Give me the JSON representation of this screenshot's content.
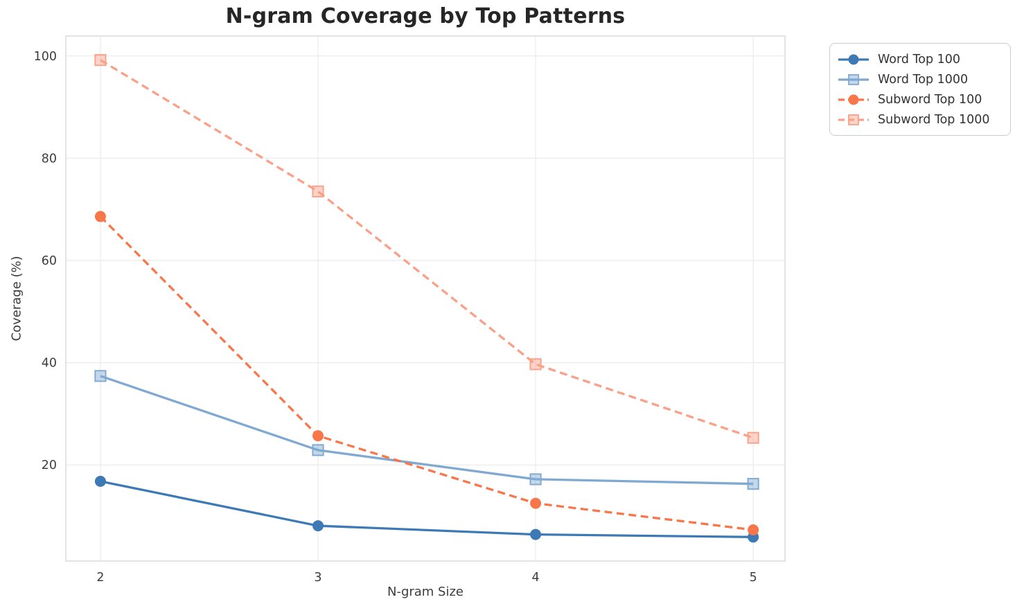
{
  "chart_data": {
    "type": "line",
    "title": "N-gram Coverage by Top Patterns",
    "xlabel": "N-gram Size",
    "ylabel": "Coverage (%)",
    "x": [
      2,
      3,
      4,
      5
    ],
    "x_tick_labels": [
      "2",
      "3",
      "4",
      "5"
    ],
    "y_ticks": [
      20,
      40,
      60,
      80,
      100
    ],
    "xlim": [
      1.841,
      5.146
    ],
    "ylim": [
      1.2,
      103.9
    ],
    "grid": true,
    "legend_position": "outside-upper-right",
    "series": [
      {
        "name": "Word Top 100",
        "values": [
          16.8,
          8.1,
          6.4,
          5.9
        ],
        "color": "#3d7ab5",
        "line_style": "solid",
        "marker": "circle"
      },
      {
        "name": "Word Top 1000",
        "values": [
          37.4,
          22.9,
          17.2,
          16.3
        ],
        "color": "#7fa9d1",
        "line_style": "solid",
        "marker": "square"
      },
      {
        "name": "Subword Top 100",
        "values": [
          68.6,
          25.7,
          12.5,
          7.3
        ],
        "color": "#f8764a",
        "line_style": "dashed",
        "marker": "circle"
      },
      {
        "name": "Subword Top 1000",
        "values": [
          99.2,
          73.5,
          39.7,
          25.3
        ],
        "color": "#fba088",
        "line_style": "dashed",
        "marker": "square"
      }
    ],
    "style": {
      "grid_color": "#ebebeb",
      "spine_color": "#d8d8d8",
      "tick_label_color": "#3d3d3d",
      "title_color": "#262626"
    }
  }
}
